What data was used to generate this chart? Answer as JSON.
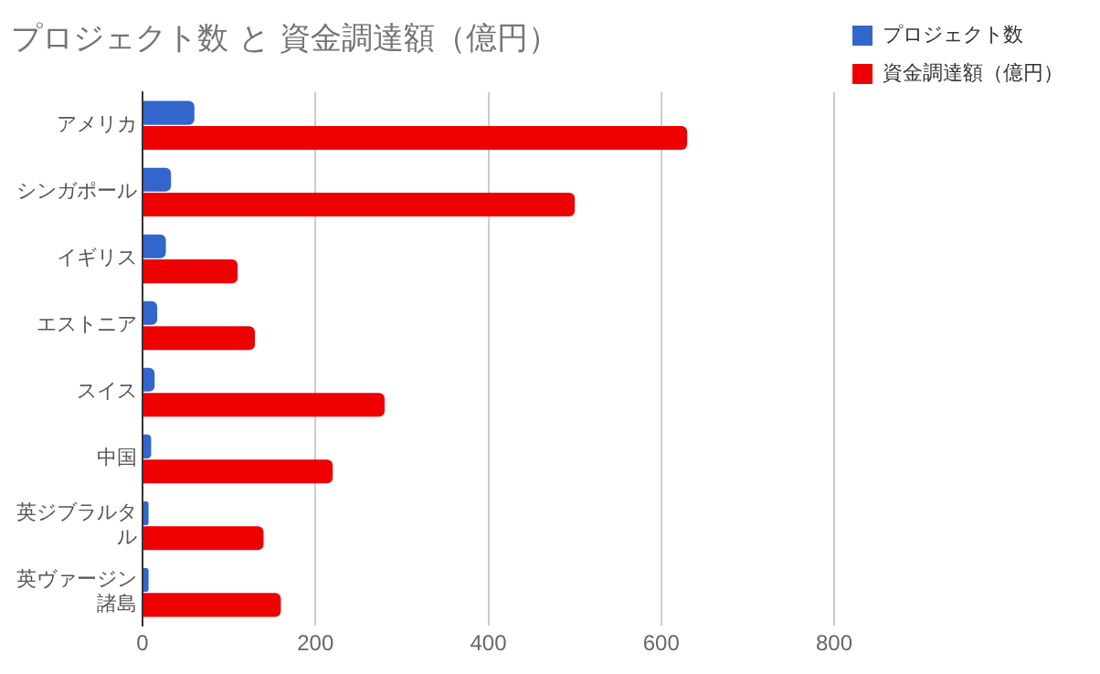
{
  "chart_data": {
    "type": "bar",
    "orientation": "horizontal",
    "title": "プロジェクト数 と 資金調達額（億円）",
    "categories": [
      "アメリカ",
      "シンガポール",
      "イギリス",
      "エストニア",
      "スイス",
      "中国",
      "英ジブラルタル",
      "英ヴァージン諸島"
    ],
    "series": [
      {
        "name": "プロジェクト数",
        "color": "#3366cc",
        "values": [
          60,
          33,
          27,
          17,
          14,
          10,
          7,
          7
        ]
      },
      {
        "name": "資金調達額（億円）",
        "color": "#ee0000",
        "values": [
          630,
          500,
          110,
          130,
          280,
          220,
          140,
          160
        ]
      }
    ],
    "xlim": [
      0,
      800
    ],
    "xticks": [
      0,
      200,
      400,
      600,
      800
    ],
    "grid": "x",
    "legend": "top right"
  }
}
